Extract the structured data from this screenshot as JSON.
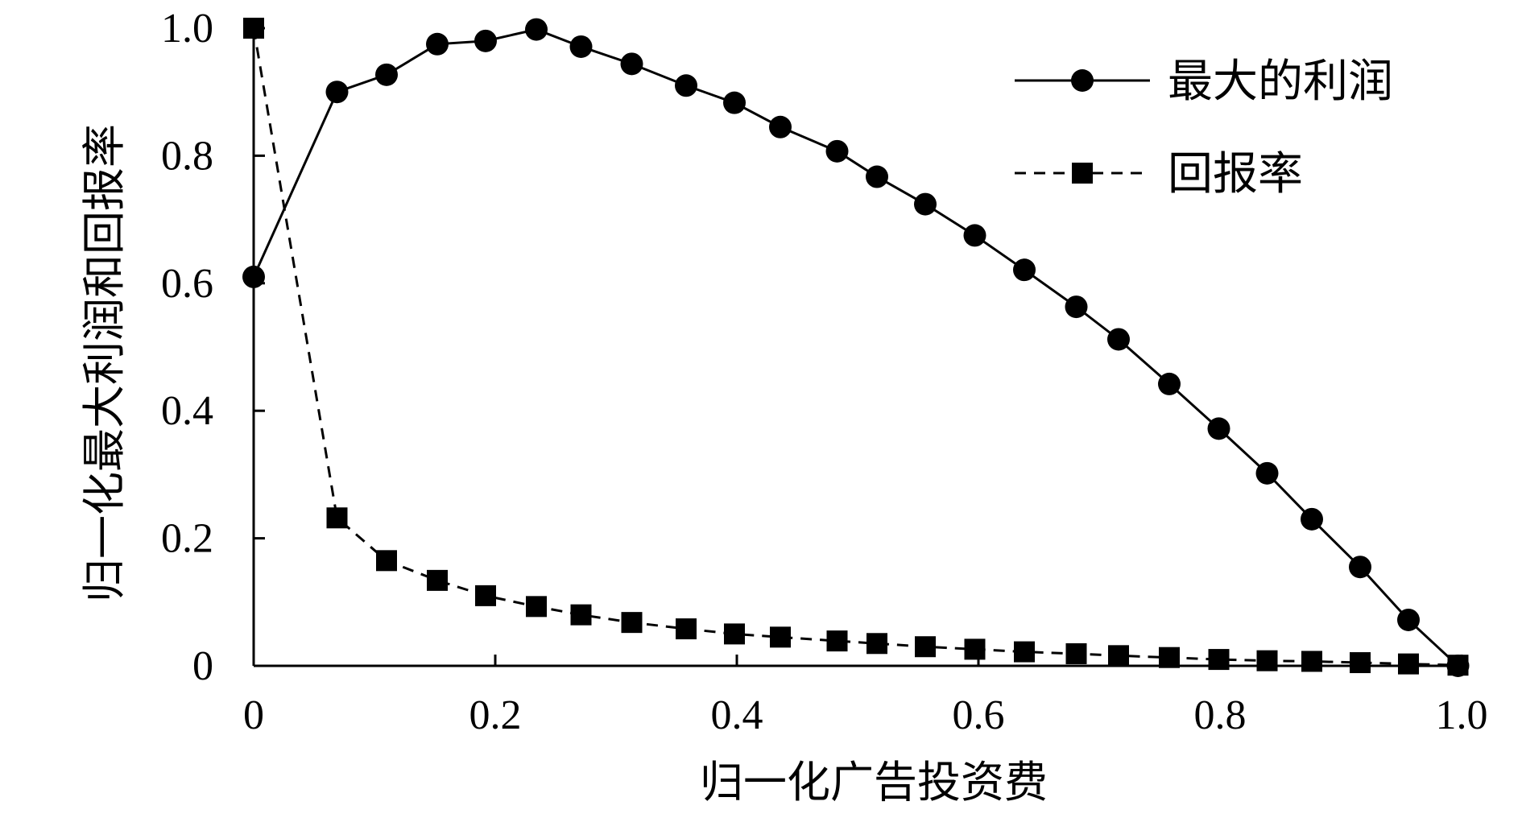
{
  "chart_data": {
    "type": "line",
    "xlabel": "归一化广告投资费",
    "ylabel": "归一化最大利润和回报率",
    "xlim": [
      0,
      1.0
    ],
    "ylim": [
      0,
      1.0
    ],
    "x_ticks": [
      "0",
      "0.2",
      "0.4",
      "0.6",
      "0.8",
      "1.0"
    ],
    "x_tick_values": [
      0,
      0.2,
      0.4,
      0.6,
      0.8,
      1.0
    ],
    "y_ticks": [
      "0",
      "0.2",
      "0.4",
      "0.6",
      "0.8",
      "1.0"
    ],
    "y_tick_values": [
      0,
      0.2,
      0.4,
      0.6,
      0.8,
      1.0
    ],
    "legend_position": "top-right",
    "grid": false,
    "series": [
      {
        "name": "最大的利润",
        "style": "solid",
        "marker": "circle",
        "color": "#000000",
        "x": [
          0,
          0.069,
          0.11,
          0.152,
          0.192,
          0.234,
          0.271,
          0.313,
          0.358,
          0.398,
          0.436,
          0.483,
          0.516,
          0.556,
          0.597,
          0.638,
          0.681,
          0.716,
          0.758,
          0.799,
          0.839,
          0.876,
          0.916,
          0.956,
          0.997
        ],
        "values": [
          0.61,
          0.9,
          0.927,
          0.975,
          0.98,
          0.998,
          0.971,
          0.944,
          0.91,
          0.883,
          0.845,
          0.807,
          0.767,
          0.724,
          0.675,
          0.621,
          0.563,
          0.512,
          0.442,
          0.372,
          0.302,
          0.23,
          0.155,
          0.072,
          0.0
        ]
      },
      {
        "name": "回报率",
        "style": "dashed",
        "marker": "square",
        "color": "#000000",
        "x": [
          0,
          0.069,
          0.11,
          0.152,
          0.192,
          0.234,
          0.271,
          0.313,
          0.358,
          0.398,
          0.436,
          0.483,
          0.516,
          0.556,
          0.597,
          0.638,
          0.681,
          0.716,
          0.758,
          0.799,
          0.839,
          0.876,
          0.916,
          0.956,
          0.997
        ],
        "values": [
          1.0,
          0.232,
          0.165,
          0.134,
          0.11,
          0.093,
          0.08,
          0.068,
          0.058,
          0.05,
          0.045,
          0.039,
          0.035,
          0.03,
          0.026,
          0.022,
          0.019,
          0.016,
          0.013,
          0.01,
          0.008,
          0.007,
          0.005,
          0.003,
          0.001
        ]
      }
    ]
  }
}
